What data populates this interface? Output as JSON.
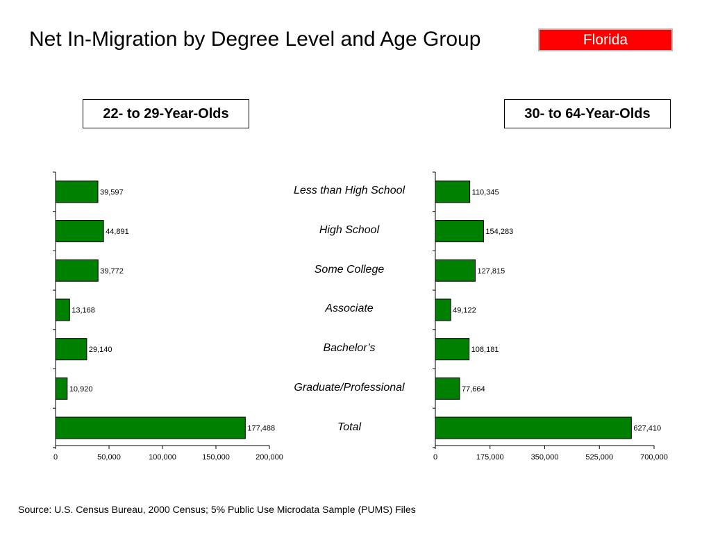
{
  "title": "Net In-Migration by Degree Level and Age Group",
  "state": "Florida",
  "colors": {
    "bar": "#008000",
    "badge": "#ff0000"
  },
  "source": "Source:  U.S. Census Bureau, 2000 Census; 5% Public Use Microdata Sample (PUMS) Files",
  "chart_data": [
    {
      "type": "bar",
      "orientation": "horizontal",
      "title": "22- to 29-Year-Olds",
      "categories": [
        "Less than High School",
        "High School",
        "Some College",
        "Associate",
        "Bachelor’s",
        "Graduate/Professional",
        "Total"
      ],
      "values": [
        39597,
        44891,
        39772,
        13168,
        29140,
        10920,
        177488
      ],
      "value_labels": [
        "39,597",
        "44,891",
        "39,772",
        "13,168",
        "29,140",
        "10,920",
        "177,488"
      ],
      "xlim": [
        0,
        200000
      ],
      "ticks": [
        0,
        50000,
        100000,
        150000,
        200000
      ],
      "tick_labels": [
        "0",
        "50,000",
        "100,000",
        "150,000",
        "200,000"
      ],
      "grid": false
    },
    {
      "type": "bar",
      "orientation": "horizontal",
      "title": "30- to 64-Year-Olds",
      "categories": [
        "Less than High School",
        "High School",
        "Some College",
        "Associate",
        "Bachelor’s",
        "Graduate/Professional",
        "Total"
      ],
      "values": [
        110345,
        154283,
        127815,
        49122,
        108181,
        77664,
        627410
      ],
      "value_labels": [
        "110,345",
        "154,283",
        "127,815",
        "49,122",
        "108,181",
        "77,664",
        "627,410"
      ],
      "xlim": [
        0,
        700000
      ],
      "ticks": [
        0,
        175000,
        350000,
        525000,
        700000
      ],
      "tick_labels": [
        "0",
        "175,000",
        "350,000",
        "525,000",
        "700,000"
      ],
      "grid": false
    }
  ]
}
